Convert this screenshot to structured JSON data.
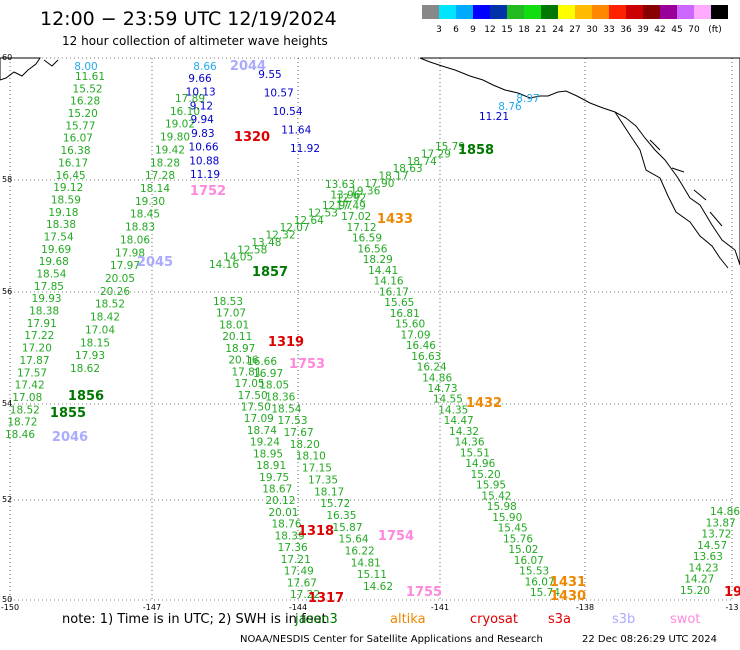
{
  "header": {
    "title": "12:00 − 23:59 UTC 12/19/2024",
    "subtitle": "12 hour collection of altimeter wave heights"
  },
  "colorbar": {
    "colors": [
      "#888888",
      "#00e5ff",
      "#00aaff",
      "#0000ff",
      "#0033aa",
      "#22bb22",
      "#11dd11",
      "#007700",
      "#ffff00",
      "#ffbb00",
      "#ff8800",
      "#ff2200",
      "#cc0000",
      "#880000",
      "#990099",
      "#cc66ff",
      "#ffaaff",
      "#000000"
    ],
    "labels": [
      "3",
      "6",
      "9",
      "12",
      "15",
      "18",
      "21",
      "24",
      "27",
      "30",
      "33",
      "36",
      "39",
      "42",
      "45",
      "70",
      "(ft)"
    ]
  },
  "axes": {
    "lat_labels": [
      "60",
      "58",
      "56",
      "54",
      "52",
      "50"
    ],
    "lon_labels": [
      "-150",
      "-147",
      "-144",
      "-141",
      "-138",
      "-13"
    ]
  },
  "tracks": [
    {
      "id": "track-a",
      "color": "#22aa22",
      "values": [
        "11.61",
        "15.52",
        "16.28",
        "15.20",
        "15.77",
        "16.07",
        "16.38",
        "16.17",
        "16.45",
        "19.12",
        "18.59",
        "19.18",
        "18.38",
        "17.54",
        "19.69",
        "19.68",
        "18.54",
        "17.85",
        "19.93",
        "18.38",
        "17.91",
        "17.22",
        "17.20",
        "17.87",
        "17.57",
        "17.42",
        "17.08",
        "18.52",
        "18.72",
        "18.46"
      ]
    },
    {
      "id": "track-b",
      "color": "#22aa22",
      "values": [
        "17.89",
        "16.10",
        "19.02",
        "19.80",
        "19.42",
        "18.28",
        "17.28",
        "18.14",
        "19.30",
        "18.45",
        "18.83",
        "18.06",
        "17.98",
        "17.97",
        "20.05",
        "20.26",
        "18.52",
        "18.42",
        "17.04",
        "18.15",
        "17.93",
        "18.62"
      ]
    },
    {
      "id": "track-c",
      "color": "#0000cc",
      "values": [
        "9.66",
        "10.13",
        "9.12",
        "9.94",
        "9.83",
        "10.66",
        "10.88",
        "11.19",
        "9.55",
        "10.57",
        "10.54",
        "11.64",
        "11.92"
      ]
    },
    {
      "id": "track-d",
      "color": "#22aa22",
      "values": [
        "18.53",
        "17.07",
        "18.01",
        "20.11",
        "18.97",
        "20.16",
        "17.81",
        "17.05",
        "17.50",
        "17.50",
        "17.09",
        "18.74",
        "19.24",
        "18.95",
        "18.91",
        "19.75",
        "18.67",
        "20.12",
        "20.01",
        "18.76",
        "18.39",
        "17.36",
        "17.21",
        "17.49",
        "17.67",
        "17.22"
      ]
    },
    {
      "id": "track-e",
      "color": "#22aa22",
      "values": [
        "16.66",
        "16.97",
        "18.05",
        "18.36",
        "18.54",
        "17.53",
        "17.67",
        "18.20",
        "18.10",
        "17.15",
        "17.35",
        "18.17",
        "15.72",
        "16.35",
        "15.87",
        "15.64",
        "16.22",
        "14.81",
        "15.11",
        "14.62"
      ]
    },
    {
      "id": "track-f",
      "color": "#22aa22",
      "values": [
        "13.63",
        "13.96",
        "17.49",
        "17.02",
        "17.12",
        "16.59",
        "16.56",
        "18.29",
        "14.41",
        "14.16",
        "16.17",
        "15.65",
        "16.81",
        "15.60",
        "17.09",
        "16.46",
        "16.63",
        "16.24",
        "14.86",
        "14.73",
        "14.55",
        "14.35",
        "14.47",
        "14.32",
        "14.36",
        "15.51",
        "14.96",
        "15.20",
        "15.95",
        "15.42",
        "15.98",
        "15.90",
        "15.45",
        "15.76",
        "15.02",
        "16.07",
        "15.53",
        "16.07",
        "15.74"
      ]
    },
    {
      "id": "track-g",
      "color": "#22aa22",
      "values": [
        "15.79",
        "17.29",
        "18.74",
        "18.63",
        "18.17",
        "17.90",
        "19.36",
        "12.92",
        "12.97",
        "12.53",
        "12.64",
        "12.07",
        "12.32",
        "13.48",
        "12.58",
        "14.05",
        "14.16"
      ]
    },
    {
      "id": "track-h",
      "color": "#22aa22",
      "values": [
        "14.86",
        "13.87",
        "13.72",
        "14.57",
        "13.63",
        "14.23",
        "14.27",
        "15.20"
      ]
    }
  ],
  "cyan_values": [
    "8.00",
    "8.66",
    "8.76",
    "8.97"
  ],
  "blue_values": [
    "11.21"
  ],
  "pass_labels": [
    {
      "text": "1858",
      "color": "#007700"
    },
    {
      "text": "1857",
      "color": "#007700"
    },
    {
      "text": "1856",
      "color": "#007700"
    },
    {
      "text": "1855",
      "color": "#007700"
    },
    {
      "text": "1320",
      "color": "#dd0000"
    },
    {
      "text": "1319",
      "color": "#dd0000"
    },
    {
      "text": "1318",
      "color": "#dd0000"
    },
    {
      "text": "1317",
      "color": "#dd0000"
    },
    {
      "text": "1433",
      "color": "#ee8800"
    },
    {
      "text": "1432",
      "color": "#ee8800"
    },
    {
      "text": "1431",
      "color": "#ee8800"
    },
    {
      "text": "1430",
      "color": "#ee8800"
    },
    {
      "text": "1752",
      "color": "#ff88dd"
    },
    {
      "text": "1753",
      "color": "#ff88dd"
    },
    {
      "text": "1754",
      "color": "#ff88dd"
    },
    {
      "text": "1755",
      "color": "#ff88dd"
    },
    {
      "text": "2045",
      "color": "#aaaaff"
    },
    {
      "text": "2046",
      "color": "#aaaaff"
    },
    {
      "text": "2044",
      "color": "#aaaaff"
    },
    {
      "text": "19",
      "color": "#dd0000"
    }
  ],
  "footer": {
    "note": "note: 1) Time is in UTC; 2) SWH is in feet",
    "satellites": [
      {
        "name": "jason3",
        "color": "#007700"
      },
      {
        "name": "altika",
        "color": "#ee8800"
      },
      {
        "name": "cryosat",
        "color": "#dd0000"
      },
      {
        "name": "s3a",
        "color": "#dd0000"
      },
      {
        "name": "s3b",
        "color": "#aaaaff"
      },
      {
        "name": "swot",
        "color": "#ff88dd"
      }
    ],
    "credit": "NOAA/NESDIS Center for Satellite Applications and Research",
    "date": "22 Dec 08:26:29 UTC 2024"
  }
}
